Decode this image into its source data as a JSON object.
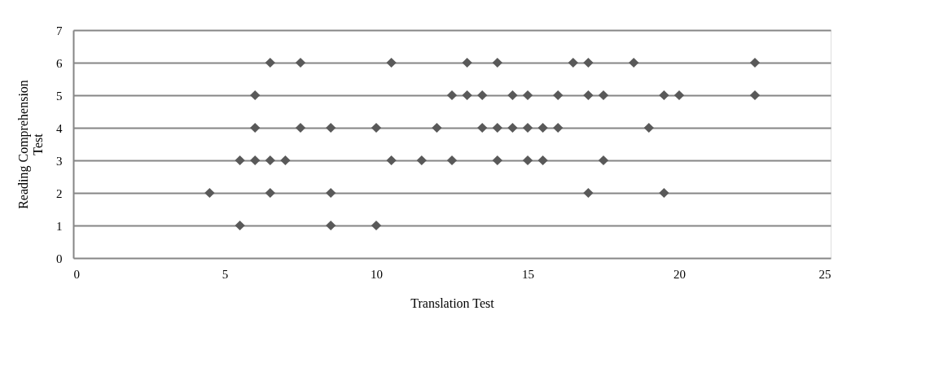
{
  "chart_data": {
    "type": "scatter",
    "xlabel": "Translation Test",
    "ylabel": "Reading Comprehension Test",
    "xlim": [
      0,
      25
    ],
    "xticks": [
      0,
      5,
      10,
      15,
      20,
      25
    ],
    "ylim": [
      0,
      7
    ],
    "yticks": [
      0,
      1,
      2,
      3,
      4,
      5,
      6,
      7
    ],
    "grid": "y",
    "marker": "diamond",
    "legend": false,
    "series": [
      {
        "color": "#595959",
        "x": [
          6.5,
          7.5,
          10.5,
          13,
          14,
          16.5,
          17,
          18.5,
          22.5,
          6,
          12.5,
          13,
          13.5,
          14.5,
          15,
          16,
          17,
          17.5,
          19.5,
          20,
          22.5,
          6,
          7.5,
          8.5,
          10,
          12,
          13.5,
          14,
          14.5,
          15,
          15.5,
          16,
          19,
          5.5,
          6,
          6.5,
          7,
          10.5,
          11.5,
          12.5,
          14,
          15,
          15.5,
          17.5,
          4.5,
          6.5,
          8.5,
          17,
          19.5,
          5.5,
          8.5,
          10
        ],
        "values": [
          6,
          6,
          6,
          6,
          6,
          6,
          6,
          6,
          6,
          5,
          5,
          5,
          5,
          5,
          5,
          5,
          5,
          5,
          5,
          5,
          5,
          4,
          4,
          4,
          4,
          4,
          4,
          4,
          4,
          4,
          4,
          4,
          4,
          3,
          3,
          3,
          3,
          3,
          3,
          3,
          3,
          3,
          3,
          3,
          2,
          2,
          2,
          2,
          2,
          1,
          1,
          1
        ]
      }
    ]
  }
}
